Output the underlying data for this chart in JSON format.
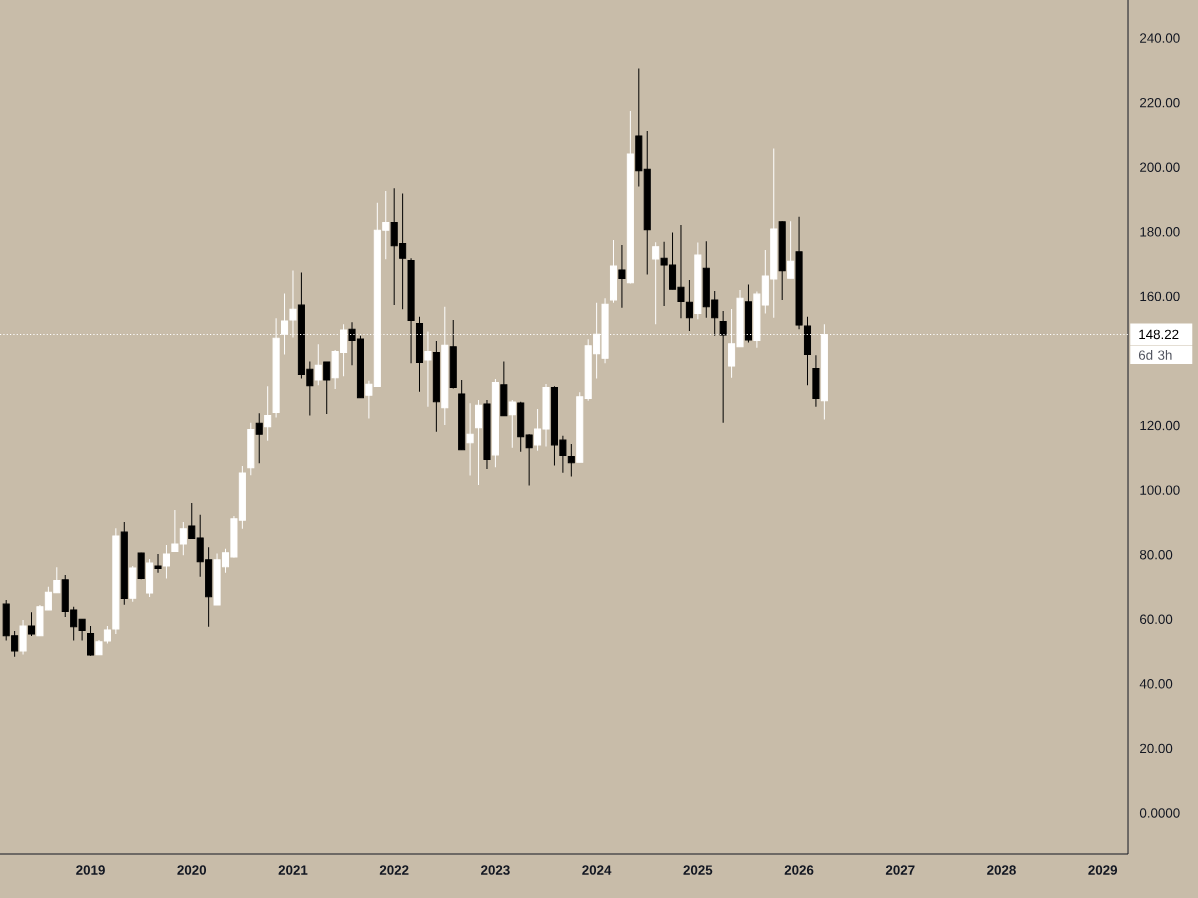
{
  "chart_data": {
    "type": "candlestick",
    "x": [
      "2018-03",
      "2018-04",
      "2018-05",
      "2018-06",
      "2018-07",
      "2018-08",
      "2018-09",
      "2018-10",
      "2018-11",
      "2018-12",
      "2019-01",
      "2019-02",
      "2019-03",
      "2019-04",
      "2019-05",
      "2019-06",
      "2019-07",
      "2019-08",
      "2019-09",
      "2019-10",
      "2019-11",
      "2019-12",
      "2020-01",
      "2020-02",
      "2020-03",
      "2020-04",
      "2020-05",
      "2020-06",
      "2020-07",
      "2020-08",
      "2020-09",
      "2020-10",
      "2020-11",
      "2020-12",
      "2021-01",
      "2021-02",
      "2021-03",
      "2021-04",
      "2021-05",
      "2021-06",
      "2021-07",
      "2021-08",
      "2021-09",
      "2021-10",
      "2021-11",
      "2021-12",
      "2022-01",
      "2022-02",
      "2022-03",
      "2022-04",
      "2022-05",
      "2022-06",
      "2022-07",
      "2022-08",
      "2022-09",
      "2022-10",
      "2022-11",
      "2022-12",
      "2023-01",
      "2023-02",
      "2023-03",
      "2023-04",
      "2023-05",
      "2023-06",
      "2023-07",
      "2023-08",
      "2023-09",
      "2023-10",
      "2023-11",
      "2023-12",
      "2024-01",
      "2024-02",
      "2024-03",
      "2024-04",
      "2024-05",
      "2024-06",
      "2024-07",
      "2024-08",
      "2024-09",
      "2024-10",
      "2024-11",
      "2024-12",
      "2025-01",
      "2025-02",
      "2025-03",
      "2025-04",
      "2025-05",
      "2025-06",
      "2025-07",
      "2025-08",
      "2025-09",
      "2025-10",
      "2025-11",
      "2025-12",
      "2026-01",
      "2026-02",
      "2026-03",
      "2026-04"
    ],
    "ohlc": [
      [
        64.7,
        66.0,
        53.4,
        54.9
      ],
      [
        54.9,
        56.4,
        48.4,
        50.2
      ],
      [
        50.2,
        59.8,
        49.1,
        57.9
      ],
      [
        57.9,
        62.2,
        54.8,
        55.4
      ],
      [
        54.9,
        64.4,
        54.9,
        63.9
      ],
      [
        62.9,
        70.1,
        62.9,
        68.4
      ],
      [
        68.2,
        76.1,
        68.2,
        72.0
      ],
      [
        72.2,
        73.7,
        60.7,
        62.4
      ],
      [
        62.9,
        63.9,
        53.4,
        57.7
      ],
      [
        60.0,
        60.0,
        53.4,
        56.5
      ],
      [
        55.6,
        57.9,
        48.7,
        48.9
      ],
      [
        49.0,
        53.6,
        49.0,
        53.0
      ],
      [
        53.3,
        57.9,
        52.5,
        56.7
      ],
      [
        57.0,
        88.2,
        55.4,
        85.8
      ],
      [
        87.0,
        90.1,
        64.5,
        66.4
      ],
      [
        66.5,
        76.5,
        65.4,
        75.9
      ],
      [
        80.5,
        80.6,
        72.4,
        72.6
      ],
      [
        68.1,
        78.7,
        66.9,
        77.4
      ],
      [
        76.5,
        80.2,
        74.4,
        75.7
      ],
      [
        76.5,
        83.0,
        72.6,
        80.2
      ],
      [
        81.0,
        93.8,
        81.0,
        83.3
      ],
      [
        83.3,
        90.1,
        79.8,
        88.0
      ],
      [
        88.9,
        96.0,
        85.0,
        85.0
      ],
      [
        85.2,
        92.4,
        73.2,
        77.8
      ],
      [
        78.4,
        82.3,
        57.7,
        67.0
      ],
      [
        64.4,
        80.4,
        64.4,
        78.4
      ],
      [
        76.3,
        81.8,
        74.4,
        80.6
      ],
      [
        79.3,
        92.0,
        79.1,
        91.1
      ],
      [
        90.7,
        107.5,
        88.0,
        105.3
      ],
      [
        106.9,
        120.9,
        104.6,
        118.8
      ],
      [
        120.7,
        123.8,
        108.3,
        117.3
      ],
      [
        119.6,
        132.2,
        115.3,
        123.1
      ],
      [
        124.0,
        153.2,
        122.5,
        147.0
      ],
      [
        148.3,
        160.9,
        142.0,
        152.4
      ],
      [
        152.7,
        168.0,
        147.3,
        156.0
      ],
      [
        157.3,
        167.4,
        134.6,
        135.8
      ],
      [
        137.4,
        139.8,
        123.1,
        132.3
      ],
      [
        134.1,
        145.2,
        132.5,
        138.7
      ],
      [
        139.7,
        139.7,
        123.6,
        134.1
      ],
      [
        134.8,
        143.4,
        131.3,
        142.9
      ],
      [
        142.6,
        151.4,
        135.3,
        149.6
      ],
      [
        149.8,
        152.0,
        138.7,
        146.3
      ],
      [
        146.8,
        147.8,
        128.6,
        128.6
      ],
      [
        129.4,
        133.9,
        122.2,
        132.8
      ],
      [
        132.1,
        189.0,
        132.1,
        180.5
      ],
      [
        180.5,
        192.6,
        171.5,
        182.9
      ],
      [
        182.9,
        193.5,
        157.3,
        175.7
      ],
      [
        176.4,
        191.9,
        156.0,
        171.8
      ],
      [
        171.1,
        171.8,
        139.3,
        152.5
      ],
      [
        151.6,
        153.7,
        130.5,
        139.5
      ],
      [
        140.3,
        149.1,
        125.8,
        142.9
      ],
      [
        142.6,
        146.2,
        118.1,
        127.4
      ],
      [
        125.5,
        156.8,
        120.2,
        144.9
      ],
      [
        144.4,
        152.7,
        131.5,
        131.8
      ],
      [
        129.8,
        134.1,
        112.5,
        112.5
      ],
      [
        114.7,
        126.9,
        104.5,
        117.3
      ],
      [
        119.3,
        127.9,
        101.6,
        126.3
      ],
      [
        126.7,
        127.9,
        106.5,
        109.5
      ],
      [
        110.9,
        134.4,
        107.1,
        133.3
      ],
      [
        132.6,
        139.8,
        123.0,
        123.0
      ],
      [
        123.3,
        127.9,
        113.1,
        127.3
      ],
      [
        127.0,
        127.4,
        111.9,
        116.5
      ],
      [
        117.1,
        117.3,
        101.4,
        113.1
      ],
      [
        114.0,
        125.1,
        112.2,
        118.9
      ],
      [
        118.9,
        132.9,
        113.5,
        131.8
      ],
      [
        131.8,
        132.2,
        107.6,
        114.0
      ],
      [
        115.5,
        116.8,
        105.4,
        110.7
      ],
      [
        110.4,
        114.3,
        104.2,
        108.5
      ],
      [
        108.6,
        130.3,
        108.6,
        128.9
      ],
      [
        128.4,
        146.7,
        127.7,
        144.7
      ],
      [
        142.2,
        158.0,
        134.6,
        148.3
      ],
      [
        140.8,
        159.4,
        139.3,
        157.6
      ],
      [
        158.9,
        177.5,
        158.0,
        169.4
      ],
      [
        168.2,
        175.9,
        156.5,
        165.5
      ],
      [
        164.2,
        217.4,
        164.0,
        204.1
      ],
      [
        209.7,
        230.6,
        194.0,
        198.9
      ],
      [
        199.4,
        211.2,
        166.8,
        180.6
      ],
      [
        171.6,
        176.8,
        151.4,
        175.4
      ],
      [
        171.8,
        176.9,
        157.0,
        169.7
      ],
      [
        169.7,
        179.8,
        162.2,
        162.2
      ],
      [
        162.8,
        182.1,
        153.2,
        158.4
      ],
      [
        158.2,
        165.1,
        149.3,
        153.4
      ],
      [
        154.7,
        176.7,
        152.9,
        172.8
      ],
      [
        168.7,
        177.1,
        153.4,
        156.8
      ],
      [
        158.9,
        161.7,
        147.8,
        153.4
      ],
      [
        152.2,
        155.5,
        120.9,
        148.0
      ],
      [
        138.4,
        156.1,
        134.8,
        145.3
      ],
      [
        144.4,
        162.0,
        144.4,
        159.4
      ],
      [
        158.3,
        163.7,
        145.7,
        146.5
      ],
      [
        146.3,
        161.5,
        144.1,
        160.7
      ],
      [
        157.3,
        174.4,
        154.7,
        166.3
      ],
      [
        165.4,
        205.8,
        153.4,
        180.9
      ],
      [
        183.1,
        183.3,
        158.9,
        167.9
      ],
      [
        165.6,
        183.3,
        165.6,
        170.9
      ],
      [
        173.8,
        184.7,
        149.8,
        151.1
      ],
      [
        150.8,
        153.7,
        132.5,
        142.0
      ],
      [
        137.7,
        141.8,
        125.8,
        128.4
      ],
      [
        127.7,
        151.4,
        121.9,
        148.22
      ]
    ],
    "colors": [
      "#000000",
      "#000000",
      "#ffffff",
      "#000000",
      "#ffffff",
      "#ffffff",
      "#ffffff",
      "#000000",
      "#000000",
      "#000000",
      "#000000",
      "#ffffff",
      "#ffffff",
      "#ffffff",
      "#000000",
      "#ffffff",
      "#000000",
      "#ffffff",
      "#000000",
      "#ffffff",
      "#ffffff",
      "#ffffff",
      "#000000",
      "#000000",
      "#000000",
      "#ffffff",
      "#ffffff",
      "#ffffff",
      "#ffffff",
      "#ffffff",
      "#000000",
      "#ffffff",
      "#ffffff",
      "#ffffff",
      "#ffffff",
      "#000000",
      "#000000",
      "#ffffff",
      "#000000",
      "#ffffff",
      "#ffffff",
      "#000000",
      "#000000",
      "#ffffff",
      "#ffffff",
      "#ffffff",
      "#000000",
      "#000000",
      "#000000",
      "#000000",
      "#ffffff",
      "#000000",
      "#ffffff",
      "#000000",
      "#000000",
      "#ffffff",
      "#ffffff",
      "#000000",
      "#ffffff",
      "#000000",
      "#ffffff",
      "#000000",
      "#000000",
      "#ffffff",
      "#ffffff",
      "#000000",
      "#000000",
      "#000000",
      "#ffffff",
      "#ffffff",
      "#ffffff",
      "#ffffff",
      "#ffffff",
      "#000000",
      "#ffffff",
      "#000000",
      "#000000",
      "#ffffff",
      "#000000",
      "#000000",
      "#000000",
      "#000000",
      "#ffffff",
      "#000000",
      "#000000",
      "#000000",
      "#ffffff",
      "#ffffff",
      "#000000",
      "#ffffff",
      "#ffffff",
      "#ffffff",
      "#000000",
      "#ffffff",
      "#000000",
      "#000000",
      "#000000",
      "#ffffff"
    ],
    "xlim": [
      "2018-02-09",
      "2029-04"
    ],
    "xticks": [
      "2019",
      "2020",
      "2021",
      "2022",
      "2023",
      "2024",
      "2025",
      "2026",
      "2027",
      "2028",
      "2029"
    ],
    "ylim": [
      -12.7,
      251.8
    ],
    "yticks": [
      {
        "value": 0,
        "label": "0.0000"
      },
      {
        "value": 20,
        "label": "20.00"
      },
      {
        "value": 40,
        "label": "40.00"
      },
      {
        "value": 60,
        "label": "60.00"
      },
      {
        "value": 80,
        "label": "80.00"
      },
      {
        "value": 100,
        "label": "100.00"
      },
      {
        "value": 120,
        "label": "120.00"
      },
      {
        "value": 160,
        "label": "160.00"
      },
      {
        "value": 180,
        "label": "180.00"
      },
      {
        "value": 200,
        "label": "200.00"
      },
      {
        "value": 220,
        "label": "220.00"
      },
      {
        "value": 240,
        "label": "240.00"
      }
    ],
    "ref_lines": [
      {
        "axis": "y",
        "value": 148.22,
        "label": "148.22",
        "color": "#ffffff",
        "line_style": "dotted"
      }
    ],
    "annotations": [
      "6d 3h"
    ]
  }
}
